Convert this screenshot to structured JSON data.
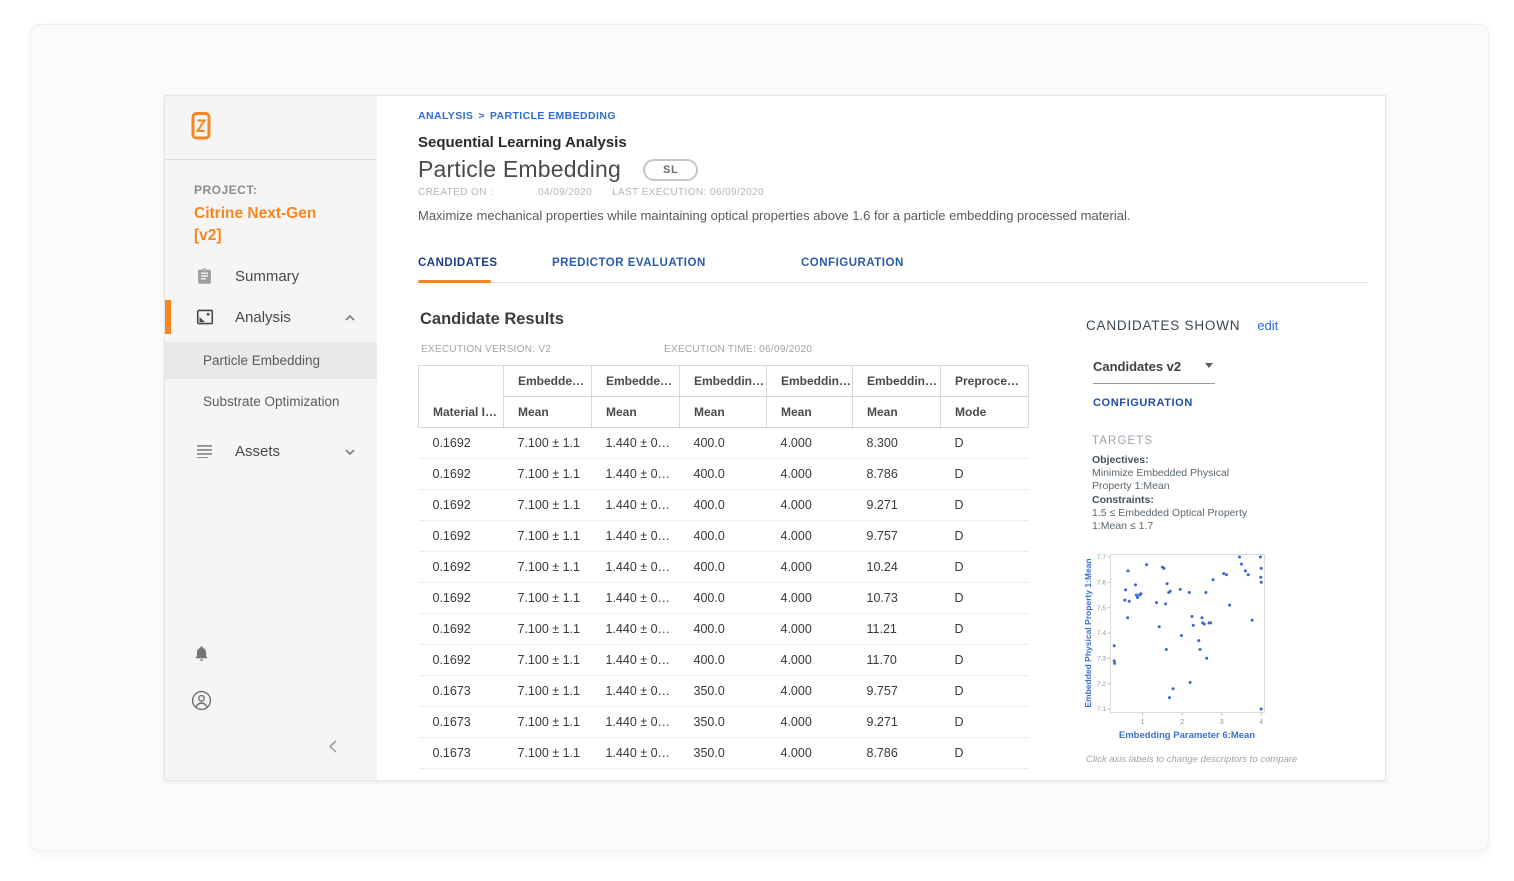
{
  "sidebar": {
    "project_label": "PROJECT:",
    "project_name_line1": "Citrine Next-Gen",
    "project_name_line2": "[v2]",
    "items": [
      {
        "label": "Summary"
      },
      {
        "label": "Analysis"
      },
      {
        "label": "Assets"
      }
    ],
    "analysis_children": [
      "Particle Embedding",
      "Substrate Optimization"
    ]
  },
  "header": {
    "breadcrumb_root": "ANALYSIS",
    "breadcrumb_sep": ">",
    "breadcrumb_current": "PARTICLE EMBEDDING",
    "subtitle": "Sequential Learning Analysis",
    "title": "Particle Embedding",
    "badge": "SL",
    "created_on_label": "CREATED ON :",
    "created_on_value": "04/09/2020",
    "last_execution": "LAST EXECUTION: 06/09/2020",
    "description": "Maximize mechanical properties while maintaining optical properties above 1.6 for a particle embedding processed material."
  },
  "tabs": [
    {
      "label": "CANDIDATES",
      "active": true
    },
    {
      "label": "PREDICTOR EVALUATION",
      "active": false
    },
    {
      "label": "CONFIGURATION",
      "active": false
    }
  ],
  "results": {
    "heading": "Candidate Results",
    "execution_version": "EXECUTION VERSION: V2",
    "execution_time": "EXECUTION TIME: 06/09/2020",
    "table": {
      "first_column_header": "Material I…",
      "column_groups": [
        {
          "top": "Embedde…",
          "sub": "Mean"
        },
        {
          "top": "Embedde…",
          "sub": "Mean"
        },
        {
          "top": "Embeddin…",
          "sub": "Mean"
        },
        {
          "top": "Embeddin…",
          "sub": "Mean"
        },
        {
          "top": "Embeddin…",
          "sub": "Mean"
        },
        {
          "top": "Preproce…",
          "sub": "Mode"
        }
      ],
      "rows": [
        [
          "0.1692",
          "7.100 ± 1.1",
          "1.440 ± 0…",
          "400.0",
          "4.000",
          "8.300",
          "D"
        ],
        [
          "0.1692",
          "7.100 ± 1.1",
          "1.440 ± 0…",
          "400.0",
          "4.000",
          "8.786",
          "D"
        ],
        [
          "0.1692",
          "7.100 ± 1.1",
          "1.440 ± 0…",
          "400.0",
          "4.000",
          "9.271",
          "D"
        ],
        [
          "0.1692",
          "7.100 ± 1.1",
          "1.440 ± 0…",
          "400.0",
          "4.000",
          "9.757",
          "D"
        ],
        [
          "0.1692",
          "7.100 ± 1.1",
          "1.440 ± 0…",
          "400.0",
          "4.000",
          "10.24",
          "D"
        ],
        [
          "0.1692",
          "7.100 ± 1.1",
          "1.440 ± 0…",
          "400.0",
          "4.000",
          "10.73",
          "D"
        ],
        [
          "0.1692",
          "7.100 ± 1.1",
          "1.440 ± 0…",
          "400.0",
          "4.000",
          "11.21",
          "D"
        ],
        [
          "0.1692",
          "7.100 ± 1.1",
          "1.440 ± 0…",
          "400.0",
          "4.000",
          "11.70",
          "D"
        ],
        [
          "0.1673",
          "7.100 ± 1.1",
          "1.440 ± 0…",
          "350.0",
          "4.000",
          "9.757",
          "D"
        ],
        [
          "0.1673",
          "7.100 ± 1.1",
          "1.440 ± 0…",
          "350.0",
          "4.000",
          "9.271",
          "D"
        ],
        [
          "0.1673",
          "7.100 ± 1.1",
          "1.440 ± 0…",
          "350.0",
          "4.000",
          "8.786",
          "D"
        ]
      ]
    }
  },
  "panel": {
    "title": "CANDIDATES SHOWN",
    "edit_label": "edit",
    "dropdown_value": "Candidates v2",
    "configuration_label": "CONFIGURATION",
    "targets_label": "TARGETS",
    "objectives_label": "Objectives:",
    "objectives_text": "Minimize Embedded Physical Property 1:Mean",
    "constraints_label": "Constraints:",
    "constraints_text": "1.5 ≤ Embedded Optical Property 1:Mean ≤ 1.7",
    "chart_note": "Click axis labels to change descriptors to compare"
  },
  "chart_data": {
    "type": "scatter",
    "title": "",
    "xlabel": "Embedding Parameter 6:Mean",
    "ylabel": "Embedded Physical Property 1:Mean",
    "xlim": [
      0.2,
      4.07
    ],
    "ylim": [
      7.1,
      7.7
    ],
    "xticks": [
      1,
      2,
      3,
      4
    ],
    "yticks": [
      7.1,
      7.2,
      7.3,
      7.4,
      7.5,
      7.6,
      7.7
    ],
    "grid": false,
    "legend": false,
    "point_color": "#3A66D1",
    "points": [
      [
        0.28,
        7.35
      ],
      [
        0.28,
        7.29
      ],
      [
        0.29,
        7.28
      ],
      [
        0.55,
        7.53
      ],
      [
        0.57,
        7.57
      ],
      [
        0.62,
        7.46
      ],
      [
        0.63,
        7.645
      ],
      [
        0.66,
        7.525
      ],
      [
        0.82,
        7.59
      ],
      [
        0.84,
        7.55
      ],
      [
        0.87,
        7.54
      ],
      [
        0.92,
        7.55
      ],
      [
        0.96,
        7.555
      ],
      [
        1.1,
        7.67
      ],
      [
        1.35,
        7.52
      ],
      [
        1.42,
        7.425
      ],
      [
        1.5,
        7.66
      ],
      [
        1.54,
        7.655
      ],
      [
        1.58,
        7.515
      ],
      [
        1.62,
        7.595
      ],
      [
        1.66,
        7.56
      ],
      [
        1.7,
        7.565
      ],
      [
        1.6,
        7.335
      ],
      [
        1.68,
        7.145
      ],
      [
        1.77,
        7.18
      ],
      [
        1.95,
        7.572
      ],
      [
        1.98,
        7.39
      ],
      [
        2.18,
        7.56
      ],
      [
        2.2,
        7.205
      ],
      [
        2.25,
        7.465
      ],
      [
        2.28,
        7.43
      ],
      [
        2.42,
        7.37
      ],
      [
        2.45,
        7.335
      ],
      [
        2.5,
        7.46
      ],
      [
        2.52,
        7.44
      ],
      [
        2.56,
        7.435
      ],
      [
        2.6,
        7.56
      ],
      [
        2.62,
        7.3
      ],
      [
        2.68,
        7.44
      ],
      [
        2.72,
        7.44
      ],
      [
        2.78,
        7.61
      ],
      [
        3.05,
        7.635
      ],
      [
        3.12,
        7.63
      ],
      [
        3.2,
        7.51
      ],
      [
        3.45,
        7.7
      ],
      [
        3.5,
        7.672
      ],
      [
        3.6,
        7.645
      ],
      [
        3.67,
        7.63
      ],
      [
        3.77,
        7.45
      ],
      [
        3.98,
        7.7
      ],
      [
        4.0,
        7.655
      ],
      [
        3.99,
        7.62
      ],
      [
        4.0,
        7.6
      ],
      [
        4.0,
        7.1
      ]
    ]
  },
  "colors": {
    "accent_orange": "#F6861F",
    "link_blue": "#2E6BD6",
    "active_tab_navy": "#1D3C86",
    "sidebar_bg": "#F5F5F5"
  }
}
